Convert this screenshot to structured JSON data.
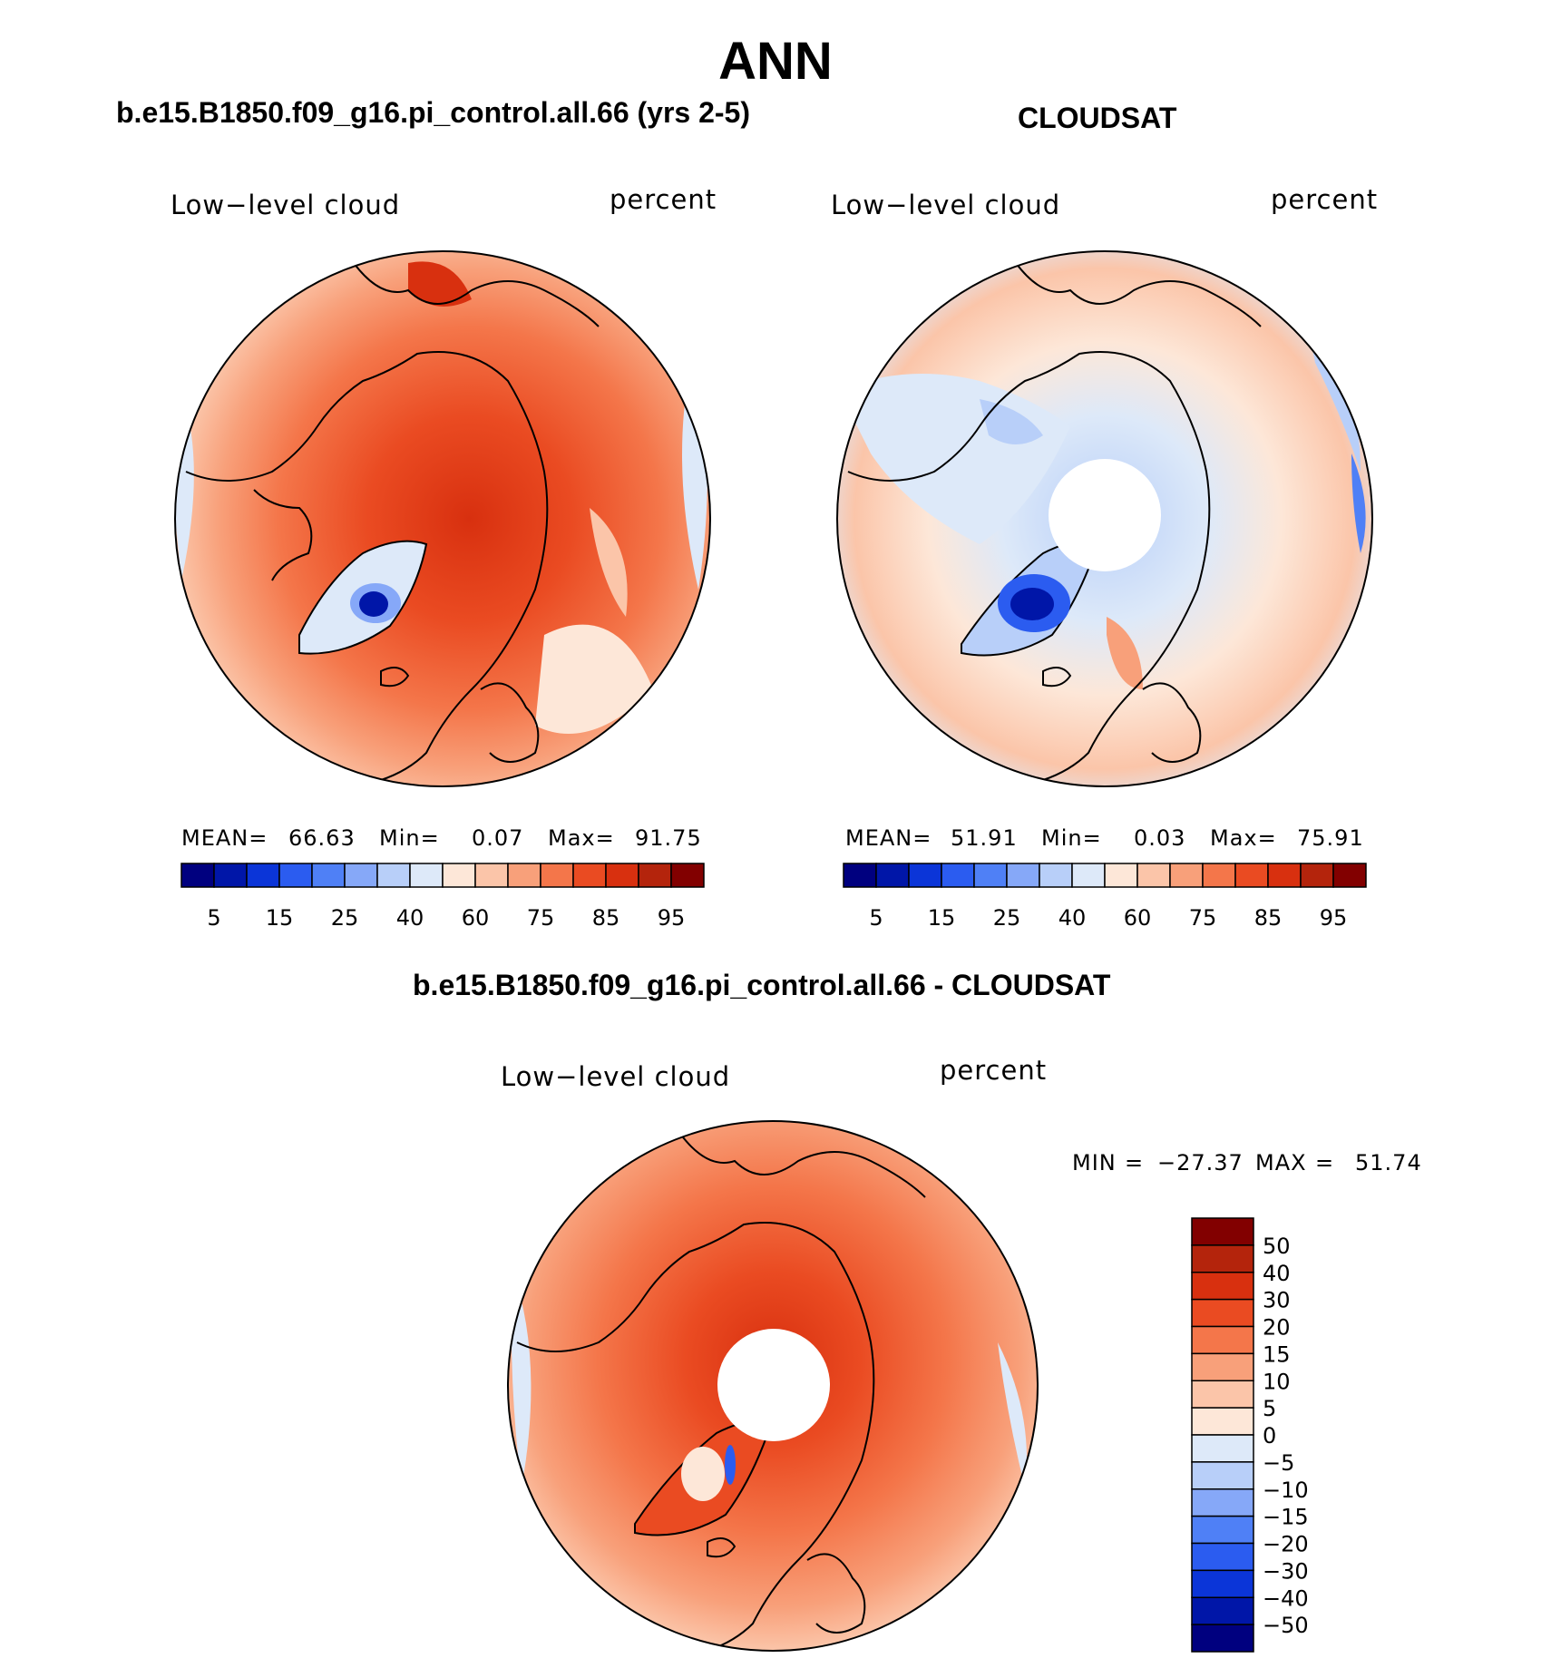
{
  "title": "ANN",
  "panels": [
    {
      "name": "model",
      "header": "b.e15.B1850.f09_g16.pi_control.all.66 (yrs 2-5)",
      "left_label": "Low−level cloud",
      "right_label": "percent",
      "stats": {
        "mean_label": "MEAN=",
        "mean": "66.63",
        "min_label": "Min=",
        "min": "0.07",
        "max_label": "Max=",
        "max": "91.75"
      }
    },
    {
      "name": "cloudsat",
      "header": "CLOUDSAT",
      "left_label": "Low−level cloud",
      "right_label": "percent",
      "stats": {
        "mean_label": "MEAN=",
        "mean": "51.91",
        "min_label": "Min=",
        "min": "0.03",
        "max_label": "Max=",
        "max": "75.91"
      }
    },
    {
      "name": "difference",
      "header": "b.e15.B1850.f09_g16.pi_control.all.66 - CLOUDSAT",
      "left_label": "Low−level cloud",
      "right_label": "percent",
      "stats": {
        "min_label": "MIN",
        "min": "−27.37",
        "max_label": "MAX",
        "max": "51.74"
      }
    }
  ],
  "colorbar_abs": {
    "colors": [
      "#00007f",
      "#0016a8",
      "#0b35d8",
      "#2b5cf0",
      "#4f80f6",
      "#86a8f8",
      "#b8cff9",
      "#dde9f9",
      "#fde7d8",
      "#fbc5a9",
      "#f8a07a",
      "#f4764a",
      "#ea4b22",
      "#d8300f",
      "#b4240c",
      "#820000"
    ],
    "tick_labels": [
      "5",
      "15",
      "25",
      "40",
      "60",
      "75",
      "85",
      "95"
    ]
  },
  "colorbar_diff": {
    "colors": [
      "#00007f",
      "#0016a8",
      "#0b35d8",
      "#2b5cf0",
      "#4f80f6",
      "#86a8f8",
      "#b8cff9",
      "#dde9f9",
      "#fde7d8",
      "#fbc5a9",
      "#f8a07a",
      "#f4764a",
      "#ea4b22",
      "#d8300f",
      "#b4240c",
      "#820000"
    ],
    "tick_labels": [
      "−50",
      "−40",
      "−30",
      "−20",
      "−15",
      "−10",
      "−5",
      "0",
      "5",
      "10",
      "15",
      "20",
      "30",
      "40",
      "50"
    ]
  }
}
